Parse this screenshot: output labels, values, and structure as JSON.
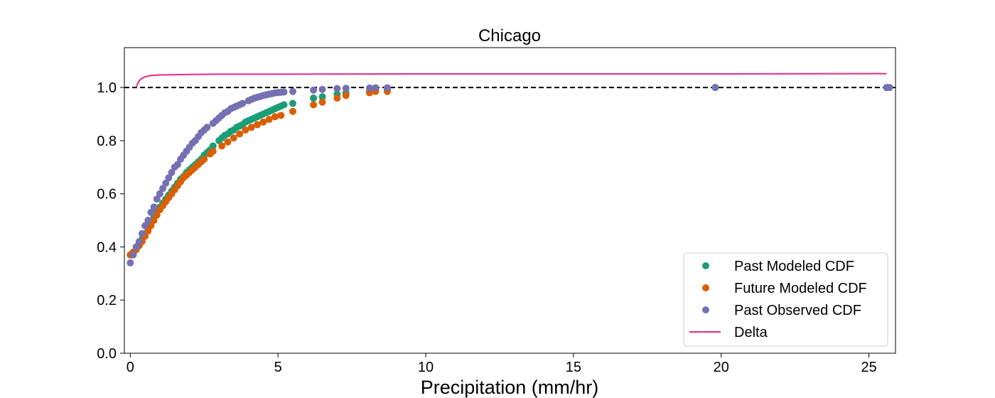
{
  "chart_data": {
    "type": "scatter",
    "title": "Chicago",
    "xlabel": "Precipitation (mm/hr)",
    "ylabel": "",
    "xlim": [
      -0.2,
      25.9
    ],
    "ylim": [
      0.0,
      1.15
    ],
    "xticks": [
      0,
      5,
      10,
      15,
      20,
      25
    ],
    "yticks": [
      0.0,
      0.2,
      0.4,
      0.6,
      0.8,
      1.0
    ],
    "xtick_labels": [
      "0",
      "5",
      "10",
      "15",
      "20",
      "25"
    ],
    "ytick_labels": [
      "0.0",
      "0.2",
      "0.4",
      "0.6",
      "0.8",
      "1.0"
    ],
    "grid": false,
    "legend_position": "lower-right",
    "reference_line": {
      "y": 1.0,
      "style": "dashed",
      "color": "#000000"
    },
    "series": [
      {
        "name": "Past Modeled CDF",
        "kind": "scatter",
        "color": "#1b9e77",
        "x": [
          0.0,
          0.1,
          0.2,
          0.3,
          0.4,
          0.5,
          0.6,
          0.7,
          0.8,
          0.9,
          1.0,
          1.1,
          1.2,
          1.3,
          1.4,
          1.5,
          1.6,
          1.7,
          1.8,
          1.9,
          2.0,
          2.1,
          2.2,
          2.3,
          2.4,
          2.5,
          2.6,
          2.7,
          2.8,
          3.0,
          3.1,
          3.2,
          3.3,
          3.4,
          3.5,
          3.6,
          3.7,
          3.8,
          3.9,
          4.0,
          4.1,
          4.2,
          4.3,
          4.4,
          4.5,
          4.6,
          4.7,
          4.8,
          4.9,
          5.0,
          5.1,
          5.2,
          5.5,
          6.2,
          6.5,
          7.0,
          7.3,
          8.1,
          8.3,
          8.7,
          19.8,
          25.6
        ],
        "y": [
          0.37,
          0.38,
          0.39,
          0.41,
          0.43,
          0.45,
          0.47,
          0.49,
          0.51,
          0.53,
          0.55,
          0.565,
          0.58,
          0.595,
          0.61,
          0.625,
          0.64,
          0.655,
          0.665,
          0.68,
          0.69,
          0.7,
          0.71,
          0.72,
          0.73,
          0.745,
          0.755,
          0.765,
          0.78,
          0.8,
          0.81,
          0.82,
          0.825,
          0.835,
          0.84,
          0.85,
          0.855,
          0.86,
          0.87,
          0.875,
          0.88,
          0.885,
          0.89,
          0.895,
          0.9,
          0.905,
          0.91,
          0.915,
          0.92,
          0.925,
          0.93,
          0.935,
          0.94,
          0.96,
          0.965,
          0.975,
          0.98,
          0.985,
          0.99,
          0.99,
          1.0,
          1.0
        ]
      },
      {
        "name": "Future Modeled CDF",
        "kind": "scatter",
        "color": "#d95f02",
        "x": [
          0.0,
          0.1,
          0.2,
          0.3,
          0.4,
          0.5,
          0.6,
          0.7,
          0.8,
          0.9,
          1.0,
          1.1,
          1.2,
          1.3,
          1.4,
          1.5,
          1.6,
          1.7,
          1.8,
          1.9,
          2.0,
          2.1,
          2.2,
          2.3,
          2.4,
          2.5,
          2.7,
          2.8,
          3.1,
          3.3,
          3.5,
          3.7,
          3.9,
          4.1,
          4.3,
          4.5,
          4.7,
          4.9,
          5.1,
          5.5,
          6.2,
          6.5,
          7.0,
          7.3,
          8.1,
          8.3,
          8.7
        ],
        "y": [
          0.37,
          0.38,
          0.39,
          0.405,
          0.42,
          0.44,
          0.46,
          0.48,
          0.5,
          0.52,
          0.54,
          0.555,
          0.57,
          0.585,
          0.6,
          0.615,
          0.63,
          0.645,
          0.66,
          0.67,
          0.68,
          0.69,
          0.7,
          0.71,
          0.72,
          0.73,
          0.75,
          0.76,
          0.78,
          0.795,
          0.81,
          0.825,
          0.84,
          0.85,
          0.86,
          0.87,
          0.88,
          0.89,
          0.895,
          0.91,
          0.935,
          0.945,
          0.96,
          0.97,
          0.98,
          0.985,
          0.985
        ]
      },
      {
        "name": "Past Observed CDF",
        "kind": "scatter",
        "color": "#7570b3",
        "x": [
          0.0,
          0.1,
          0.2,
          0.3,
          0.4,
          0.5,
          0.6,
          0.7,
          0.8,
          0.9,
          1.0,
          1.1,
          1.2,
          1.3,
          1.4,
          1.5,
          1.6,
          1.7,
          1.8,
          1.9,
          2.0,
          2.1,
          2.2,
          2.3,
          2.4,
          2.5,
          2.6,
          2.8,
          2.9,
          3.0,
          3.1,
          3.2,
          3.3,
          3.4,
          3.5,
          3.6,
          3.7,
          3.8,
          4.0,
          4.1,
          4.2,
          4.3,
          4.4,
          4.5,
          4.6,
          4.7,
          4.8,
          4.9,
          5.0,
          5.1,
          5.2,
          5.5,
          6.2,
          6.5,
          7.0,
          7.3,
          8.1,
          8.3,
          8.7,
          19.8,
          25.6,
          25.7
        ],
        "y": [
          0.34,
          0.37,
          0.4,
          0.42,
          0.45,
          0.48,
          0.5,
          0.53,
          0.55,
          0.58,
          0.6,
          0.62,
          0.64,
          0.66,
          0.68,
          0.7,
          0.71,
          0.73,
          0.745,
          0.76,
          0.775,
          0.79,
          0.8,
          0.815,
          0.83,
          0.84,
          0.85,
          0.865,
          0.875,
          0.885,
          0.895,
          0.905,
          0.91,
          0.92,
          0.925,
          0.93,
          0.935,
          0.94,
          0.95,
          0.955,
          0.96,
          0.963,
          0.966,
          0.97,
          0.972,
          0.975,
          0.977,
          0.98,
          0.981,
          0.982,
          0.983,
          0.985,
          0.99,
          0.993,
          0.996,
          0.997,
          0.998,
          0.999,
          0.999,
          1.0,
          1.0,
          1.0
        ]
      },
      {
        "name": "Delta",
        "kind": "line",
        "color": "#e7298a",
        "x": [
          0.2,
          0.25,
          0.3,
          0.4,
          0.5,
          0.7,
          1.0,
          1.5,
          2.0,
          3.0,
          5.0,
          10.0,
          15.0,
          20.0,
          25.6
        ],
        "y": [
          1.0,
          1.015,
          1.025,
          1.035,
          1.04,
          1.045,
          1.047,
          1.048,
          1.049,
          1.05,
          1.05,
          1.051,
          1.051,
          1.051,
          1.052
        ]
      }
    ]
  }
}
